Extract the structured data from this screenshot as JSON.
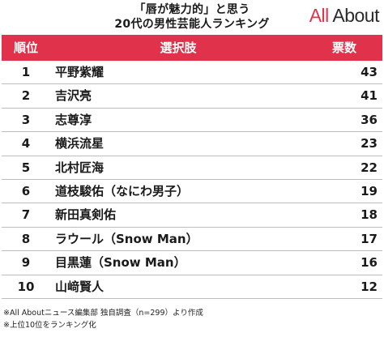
{
  "header": {
    "title_line1": "「唇が魅力的」と思う",
    "title_line2": "20代の男性芸能人ランキング",
    "logo_text_a": "All",
    "logo_text_b": " About"
  },
  "table": {
    "col_rank": "順位",
    "col_name": "選択肢",
    "col_votes": "票数",
    "rows": [
      {
        "rank": "1",
        "name": "平野紫耀",
        "votes": "43"
      },
      {
        "rank": "2",
        "name": "吉沢亮",
        "votes": "41"
      },
      {
        "rank": "3",
        "name": "志尊淳",
        "votes": "36"
      },
      {
        "rank": "4",
        "name": "横浜流星",
        "votes": "23"
      },
      {
        "rank": "5",
        "name": "北村匠海",
        "votes": "22"
      },
      {
        "rank": "6",
        "name": "道枝駿佑（なにわ男子）",
        "votes": "19"
      },
      {
        "rank": "7",
        "name": "新田真剣佑",
        "votes": "18"
      },
      {
        "rank": "8",
        "name": "ラウール（Snow Man）",
        "votes": "17"
      },
      {
        "rank": "9",
        "name": "目黒蓮（Snow Man）",
        "votes": "16"
      },
      {
        "rank": "10",
        "name": "山﨑賢人",
        "votes": "12"
      }
    ]
  },
  "footer": {
    "note1": "※All Aboutニュース編集部 独自調査（n=299）より作成",
    "note2": "※上位10位をランキング化"
  },
  "colors": {
    "accent": "#e0324b",
    "header_text": "#ffffff",
    "row_border": "#bdbdbd"
  }
}
